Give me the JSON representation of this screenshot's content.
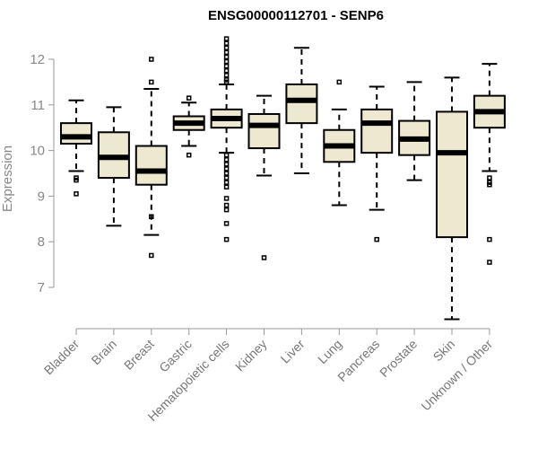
{
  "chart_data": {
    "type": "box",
    "title": "ENSG00000112701 - SENP6",
    "xlabel": "",
    "ylabel": "Expression",
    "ylim": [
      6.3,
      12.5
    ],
    "yticks": [
      7,
      8,
      9,
      10,
      11,
      12
    ],
    "categories": [
      "Bladder",
      "Brain",
      "Breast",
      "Gastric",
      "Hematopoietic cells",
      "Kidney",
      "Liver",
      "Lung",
      "Pancreas",
      "Prostate",
      "Skin",
      "Unknown / Other"
    ],
    "box_color": "#EDE8D0",
    "boxes": [
      {
        "name": "Bladder",
        "whisker_low": 9.55,
        "q1": 10.15,
        "median": 10.3,
        "q3": 10.6,
        "whisker_high": 11.1,
        "outliers": [
          9.4,
          9.35,
          9.05
        ]
      },
      {
        "name": "Brain",
        "whisker_low": 8.35,
        "q1": 9.4,
        "median": 9.85,
        "q3": 10.4,
        "whisker_high": 10.95,
        "outliers": []
      },
      {
        "name": "Breast",
        "whisker_low": 8.15,
        "q1": 9.25,
        "median": 9.55,
        "q3": 10.1,
        "whisker_high": 11.35,
        "outliers": [
          12.0,
          11.5,
          8.55,
          7.7
        ]
      },
      {
        "name": "Gastric",
        "whisker_low": 10.1,
        "q1": 10.45,
        "median": 10.6,
        "q3": 10.75,
        "whisker_high": 11.05,
        "outliers": [
          11.15,
          9.9
        ]
      },
      {
        "name": "Hematopoietic cells",
        "whisker_low": 9.95,
        "q1": 10.5,
        "median": 10.7,
        "q3": 10.9,
        "whisker_high": 11.45,
        "outliers": [
          12.45,
          12.35,
          12.25,
          12.15,
          12.05,
          11.95,
          11.85,
          11.75,
          11.65,
          11.55,
          11.5,
          9.9,
          9.8,
          9.7,
          9.6,
          9.5,
          9.4,
          9.3,
          9.2,
          8.95,
          8.8,
          8.7,
          8.4,
          8.05
        ]
      },
      {
        "name": "Kidney",
        "whisker_low": 9.45,
        "q1": 10.05,
        "median": 10.55,
        "q3": 10.8,
        "whisker_high": 11.2,
        "outliers": [
          7.65
        ]
      },
      {
        "name": "Liver",
        "whisker_low": 9.5,
        "q1": 10.6,
        "median": 11.1,
        "q3": 11.45,
        "whisker_high": 12.25,
        "outliers": []
      },
      {
        "name": "Lung",
        "whisker_low": 8.8,
        "q1": 9.75,
        "median": 10.1,
        "q3": 10.45,
        "whisker_high": 10.9,
        "outliers": [
          11.5
        ]
      },
      {
        "name": "Pancreas",
        "whisker_low": 8.7,
        "q1": 9.95,
        "median": 10.6,
        "q3": 10.9,
        "whisker_high": 11.4,
        "outliers": [
          8.05
        ]
      },
      {
        "name": "Prostate",
        "whisker_low": 9.35,
        "q1": 9.9,
        "median": 10.25,
        "q3": 10.65,
        "whisker_high": 11.5,
        "outliers": []
      },
      {
        "name": "Skin",
        "whisker_low": 6.3,
        "q1": 8.1,
        "median": 9.95,
        "q3": 10.85,
        "whisker_high": 11.6,
        "outliers": []
      },
      {
        "name": "Unknown / Other",
        "whisker_low": 9.55,
        "q1": 10.5,
        "median": 10.85,
        "q3": 11.2,
        "whisker_high": 11.9,
        "outliers": [
          9.4,
          9.3,
          9.25,
          8.05,
          7.55
        ]
      }
    ]
  }
}
